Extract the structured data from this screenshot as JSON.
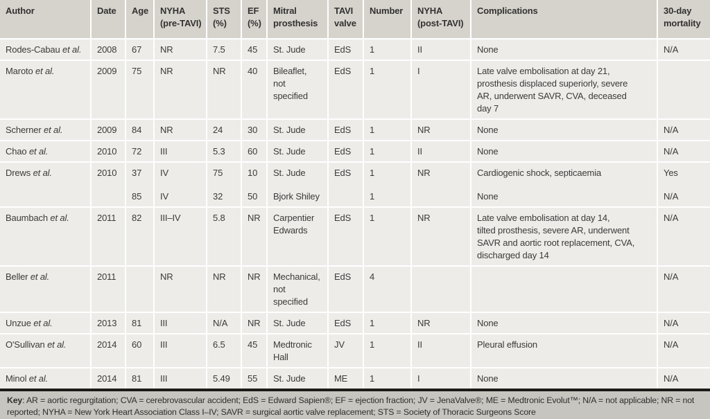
{
  "table": {
    "columns": [
      {
        "id": "author",
        "label": "Author"
      },
      {
        "id": "date",
        "label": "Date"
      },
      {
        "id": "age",
        "label": "Age"
      },
      {
        "id": "nyha_pre",
        "label": "NYHA\n(pre-TAVI)"
      },
      {
        "id": "sts",
        "label": "STS\n(%)"
      },
      {
        "id": "ef",
        "label": "EF\n(%)"
      },
      {
        "id": "mitral_prosthesis",
        "label": "Mitral\nprosthesis"
      },
      {
        "id": "tavi_valve",
        "label": "TAVI\nvalve"
      },
      {
        "id": "number",
        "label": "Number"
      },
      {
        "id": "nyha_post",
        "label": "NYHA\n(post-TAVI)"
      },
      {
        "id": "complications",
        "label": "Complications"
      },
      {
        "id": "mortality_30day",
        "label": "30-day\nmortality"
      }
    ],
    "rows": [
      {
        "author": "Rodes-Cabau",
        "author_suffix": "et al.",
        "cells": [
          "2008",
          "67",
          "NR",
          "7.5",
          "45",
          "St. Jude",
          "EdS",
          "1",
          "II",
          "None",
          "N/A"
        ]
      },
      {
        "author": "Maroto",
        "author_suffix": "et al.",
        "cells": [
          "2009",
          "75",
          "NR",
          "NR",
          "40",
          "Bileaflet,\nnot\nspecified",
          "EdS",
          "1",
          "I",
          "Late valve embolisation at day 21,\nprosthesis displaced superiorly, severe\nAR, underwent SAVR, CVA, deceased\nday 7",
          ""
        ]
      },
      {
        "author": "Scherner",
        "author_suffix": "et al.",
        "cells": [
          "2009",
          "84",
          "NR",
          "24",
          "30",
          "St. Jude",
          "EdS",
          "1",
          "NR",
          "None",
          "N/A"
        ]
      },
      {
        "author": "Chao",
        "author_suffix": "et al.",
        "cells": [
          "2010",
          "72",
          "III",
          "5.3",
          "60",
          "St. Jude",
          "EdS",
          "1",
          "II",
          "None",
          "N/A"
        ]
      },
      {
        "author": "Drews",
        "author_suffix": "et al.",
        "merge_with_next": true,
        "cells": [
          "2010",
          "37",
          "IV",
          "75",
          "10",
          "St. Jude",
          "EdS",
          "1",
          "NR",
          "Cardiogenic shock, septicaemia",
          "Yes"
        ]
      },
      {
        "author": "",
        "author_suffix": "",
        "continuation": true,
        "cells": [
          "",
          "85",
          "IV",
          "32",
          "50",
          "Bjork Shiley",
          "",
          "1",
          "",
          "None",
          "N/A"
        ]
      },
      {
        "author": "Baumbach",
        "author_suffix": "et al.",
        "cells": [
          "2011",
          "82",
          "III–IV",
          "5.8",
          "NR",
          "Carpentier\nEdwards",
          "EdS",
          "1",
          "NR",
          "Late valve embolisation at day 14,\ntilted prosthesis, severe AR, underwent\nSAVR and aortic root replacement, CVA,\ndischarged day 14",
          "N/A"
        ]
      },
      {
        "author": "Beller",
        "author_suffix": "et al.",
        "cells": [
          "2011",
          "",
          "NR",
          "NR",
          "NR",
          "Mechanical,\nnot\nspecified",
          "EdS",
          "4",
          "",
          "",
          "N/A"
        ]
      },
      {
        "author": "Unzue",
        "author_suffix": "et al.",
        "cells": [
          "2013",
          "81",
          "III",
          "N/A",
          "NR",
          "St. Jude",
          "EdS",
          "1",
          "NR",
          "None",
          "N/A"
        ]
      },
      {
        "author": "O'Sullivan",
        "author_suffix": "et al.",
        "cells": [
          "2014",
          "60",
          "III",
          "6.5",
          "45",
          "Medtronic\nHall",
          "JV",
          "1",
          "II",
          "Pleural effusion",
          "N/A"
        ]
      },
      {
        "author": "Minol",
        "author_suffix": "et al.",
        "cells": [
          "2014",
          "81",
          "III",
          "5.49",
          "55",
          "St. Jude",
          "ME",
          "1",
          "I",
          "None",
          "N/A"
        ]
      }
    ]
  },
  "footer": {
    "key_label": "Key",
    "key_text": ": AR = aortic regurgitation; CVA = cerebrovascular accident; EdS = Edward Sapien®; EF = ejection fraction; JV = JenaValve®; ME = Medtronic Evolut™; N/A = not applicable; NR = not\nreported; NYHA = New York Heart Association Class I–IV; SAVR = surgical aortic valve replacement; STS = Society of Thoracic Surgeons Score"
  },
  "colors": {
    "header_bg": "#d6d3cd",
    "row_bg": "#edece9",
    "separator": "#ffffff",
    "footer_bg": "#c7c5bf",
    "footer_bar": "#1b1b19",
    "text": "#3b3a39"
  }
}
